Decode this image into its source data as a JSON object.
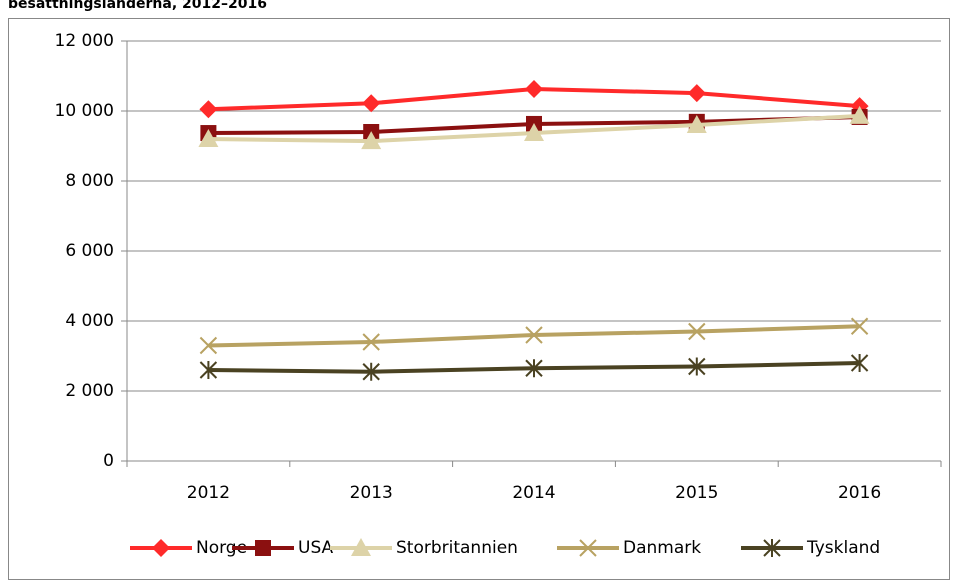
{
  "chart_data": {
    "type": "line",
    "title": "besättningsländerna, 2012–2016",
    "categories": [
      "2012",
      "2013",
      "2014",
      "2015",
      "2016"
    ],
    "series": [
      {
        "name": "Norge",
        "color": "#ff2a2a",
        "marker": "diamond",
        "values": [
          10050,
          10220,
          10630,
          10510,
          10140
        ]
      },
      {
        "name": "USA",
        "color": "#8b1010",
        "marker": "square",
        "values": [
          9370,
          9400,
          9630,
          9690,
          9830
        ]
      },
      {
        "name": "Storbritannien",
        "color": "#ddd3a8",
        "marker": "triangle",
        "values": [
          9200,
          9140,
          9370,
          9600,
          9860
        ]
      },
      {
        "name": "Danmark",
        "color": "#b8a262",
        "marker": "x",
        "values": [
          3300,
          3400,
          3600,
          3700,
          3850
        ]
      },
      {
        "name": "Tyskland",
        "color": "#4a4222",
        "marker": "star",
        "values": [
          2600,
          2550,
          2650,
          2700,
          2800
        ]
      }
    ],
    "ylim": [
      0,
      12000
    ],
    "yticks": [
      0,
      {
        "value": 2000,
        "label": "2 000"
      },
      {
        "value": 4000,
        "label": "4 000"
      },
      {
        "value": 6000,
        "label": "6 000"
      },
      {
        "value": 8000,
        "label": "8 000"
      },
      {
        "value": 10000,
        "label": "10 000"
      },
      {
        "value": 12000,
        "label": "12 000"
      }
    ],
    "grid": true,
    "legend": "bottom"
  }
}
